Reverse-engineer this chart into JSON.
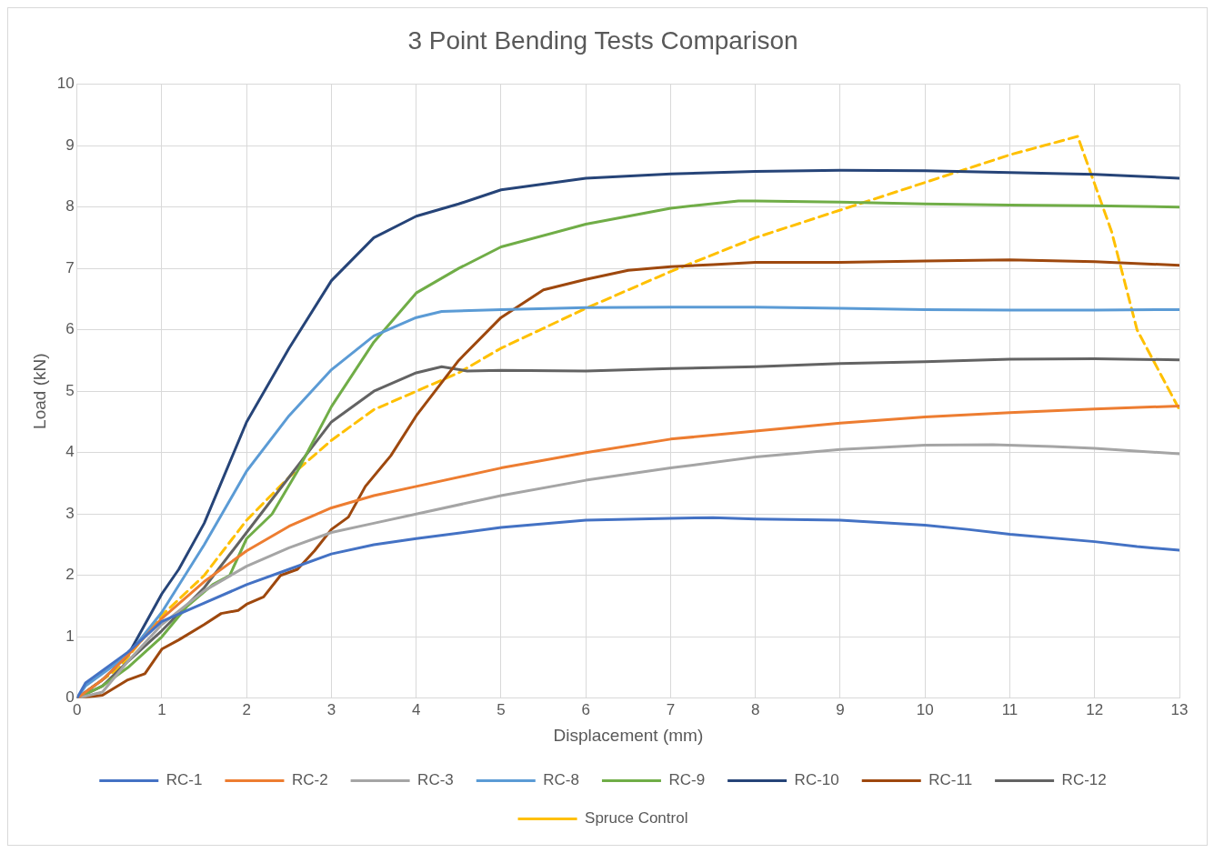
{
  "chart_data": {
    "type": "line",
    "title": "3 Point Bending Tests Comparison",
    "xlabel": "Displacement (mm)",
    "ylabel": "Load (kN)",
    "xlim": [
      0,
      13
    ],
    "xticks": [
      0,
      1,
      2,
      3,
      4,
      5,
      6,
      7,
      8,
      9,
      10,
      11,
      12,
      13
    ],
    "ylim": [
      0,
      10
    ],
    "yticks": [
      0,
      1,
      2,
      3,
      4,
      5,
      6,
      7,
      8,
      9,
      10
    ],
    "grid": true,
    "legend": "bottom",
    "marker": "none",
    "line_style": "solid",
    "series": [
      {
        "name": "RC-1",
        "color": "#4472c4",
        "x": [
          0,
          0.1,
          0.3,
          0.6,
          1,
          1.5,
          2,
          2.5,
          3,
          3.5,
          4,
          5,
          6,
          7,
          7.5,
          8,
          9,
          10,
          10.5,
          11,
          12,
          12.5,
          13
        ],
        "values": [
          0,
          0.25,
          0.45,
          0.75,
          1.25,
          1.55,
          1.85,
          2.1,
          2.35,
          2.5,
          2.6,
          2.78,
          2.9,
          2.93,
          2.94,
          2.92,
          2.9,
          2.82,
          2.75,
          2.67,
          2.55,
          2.47,
          2.41
        ]
      },
      {
        "name": "RC-2",
        "color": "#ed7d31",
        "x": [
          0,
          0.3,
          0.6,
          1,
          1.5,
          2,
          2.5,
          3,
          3.5,
          4,
          5,
          6,
          7,
          8,
          9,
          10,
          11,
          12,
          13
        ],
        "values": [
          0,
          0.3,
          0.7,
          1.3,
          1.9,
          2.4,
          2.8,
          3.1,
          3.3,
          3.45,
          3.75,
          4.0,
          4.22,
          4.35,
          4.48,
          4.58,
          4.65,
          4.71,
          4.76
        ]
      },
      {
        "name": "RC-3",
        "color": "#a5a5a5",
        "x": [
          0,
          0.3,
          0.6,
          1,
          1.5,
          2,
          2.5,
          3,
          3.5,
          4,
          5,
          6,
          7,
          8,
          9,
          10,
          10.8,
          11.5,
          12,
          13
        ],
        "values": [
          0,
          0.1,
          0.6,
          1.2,
          1.75,
          2.15,
          2.45,
          2.7,
          2.85,
          3.0,
          3.3,
          3.55,
          3.75,
          3.93,
          4.05,
          4.12,
          4.13,
          4.1,
          4.07,
          3.98
        ]
      },
      {
        "name": "RC-8",
        "color": "#5b9bd5",
        "x": [
          0,
          0.1,
          0.3,
          0.6,
          1,
          1.5,
          2,
          2.5,
          3,
          3.5,
          4,
          4.3,
          5,
          6,
          7,
          8,
          9,
          10,
          11,
          12,
          13
        ],
        "values": [
          0,
          0.2,
          0.4,
          0.7,
          1.4,
          2.5,
          3.7,
          4.6,
          5.35,
          5.9,
          6.2,
          6.3,
          6.33,
          6.36,
          6.37,
          6.37,
          6.35,
          6.33,
          6.32,
          6.32,
          6.33
        ]
      },
      {
        "name": "RC-9",
        "color": "#70ad47",
        "x": [
          0,
          0.3,
          0.6,
          1,
          1.3,
          1.6,
          1.8,
          2,
          2.3,
          2.6,
          3,
          3.5,
          4,
          4.5,
          5,
          6,
          7,
          7.8,
          8,
          9,
          10,
          11,
          12,
          13
        ],
        "values": [
          0,
          0.2,
          0.5,
          1.0,
          1.5,
          1.85,
          2.0,
          2.6,
          3.0,
          3.7,
          4.75,
          5.8,
          6.6,
          7.0,
          7.35,
          7.72,
          7.98,
          8.1,
          8.1,
          8.08,
          8.05,
          8.03,
          8.02,
          8.0
        ]
      },
      {
        "name": "RC-10",
        "color": "#264478",
        "x": [
          0,
          0.3,
          0.6,
          1,
          1.2,
          1.5,
          2,
          2.5,
          3,
          3.5,
          4,
          4.5,
          5,
          6,
          7,
          8,
          9,
          10,
          11,
          12,
          13
        ],
        "values": [
          0,
          0.3,
          0.7,
          1.7,
          2.1,
          2.85,
          4.5,
          5.7,
          6.8,
          7.5,
          7.85,
          8.05,
          8.28,
          8.47,
          8.54,
          8.58,
          8.6,
          8.59,
          8.56,
          8.53,
          8.47
        ]
      },
      {
        "name": "RC-11",
        "color": "#9e480e",
        "x": [
          0,
          0.3,
          0.6,
          0.8,
          1,
          1.2,
          1.5,
          1.7,
          1.9,
          2,
          2.2,
          2.4,
          2.6,
          2.8,
          3,
          3.2,
          3.4,
          3.7,
          4,
          4.5,
          5,
          5.5,
          6,
          6.5,
          7,
          7.5,
          8,
          9,
          10,
          11,
          12,
          13
        ],
        "values": [
          0,
          0.05,
          0.3,
          0.4,
          0.8,
          0.95,
          1.2,
          1.38,
          1.43,
          1.53,
          1.65,
          2.0,
          2.1,
          2.4,
          2.75,
          2.95,
          3.45,
          3.95,
          4.6,
          5.5,
          6.2,
          6.65,
          6.82,
          6.97,
          7.03,
          7.06,
          7.1,
          7.1,
          7.12,
          7.14,
          7.11,
          7.05
        ]
      },
      {
        "name": "RC-12",
        "color": "#636363",
        "x": [
          0,
          0.3,
          0.6,
          1,
          1.5,
          2,
          2.5,
          3,
          3.5,
          4,
          4.3,
          4.6,
          5,
          6,
          7,
          8,
          9,
          10,
          11,
          12,
          13
        ],
        "values": [
          0,
          0.2,
          0.6,
          1.1,
          1.8,
          2.7,
          3.6,
          4.5,
          5.0,
          5.3,
          5.4,
          5.33,
          5.34,
          5.33,
          5.37,
          5.4,
          5.45,
          5.48,
          5.52,
          5.53,
          5.51
        ]
      },
      {
        "name": "Spruce Control",
        "color": "#ffc000",
        "line_style": "dashed",
        "x": [
          0,
          0.5,
          1,
          1.5,
          2,
          2.5,
          3,
          3.5,
          4,
          4.5,
          5,
          6,
          7,
          8,
          9,
          10,
          11,
          11.8,
          12.2,
          12.5,
          13
        ],
        "values": [
          0,
          0.5,
          1.35,
          2.0,
          2.9,
          3.6,
          4.2,
          4.7,
          5.0,
          5.3,
          5.7,
          6.35,
          6.95,
          7.5,
          7.95,
          8.4,
          8.85,
          9.15,
          7.6,
          6.0,
          4.7
        ]
      }
    ]
  }
}
